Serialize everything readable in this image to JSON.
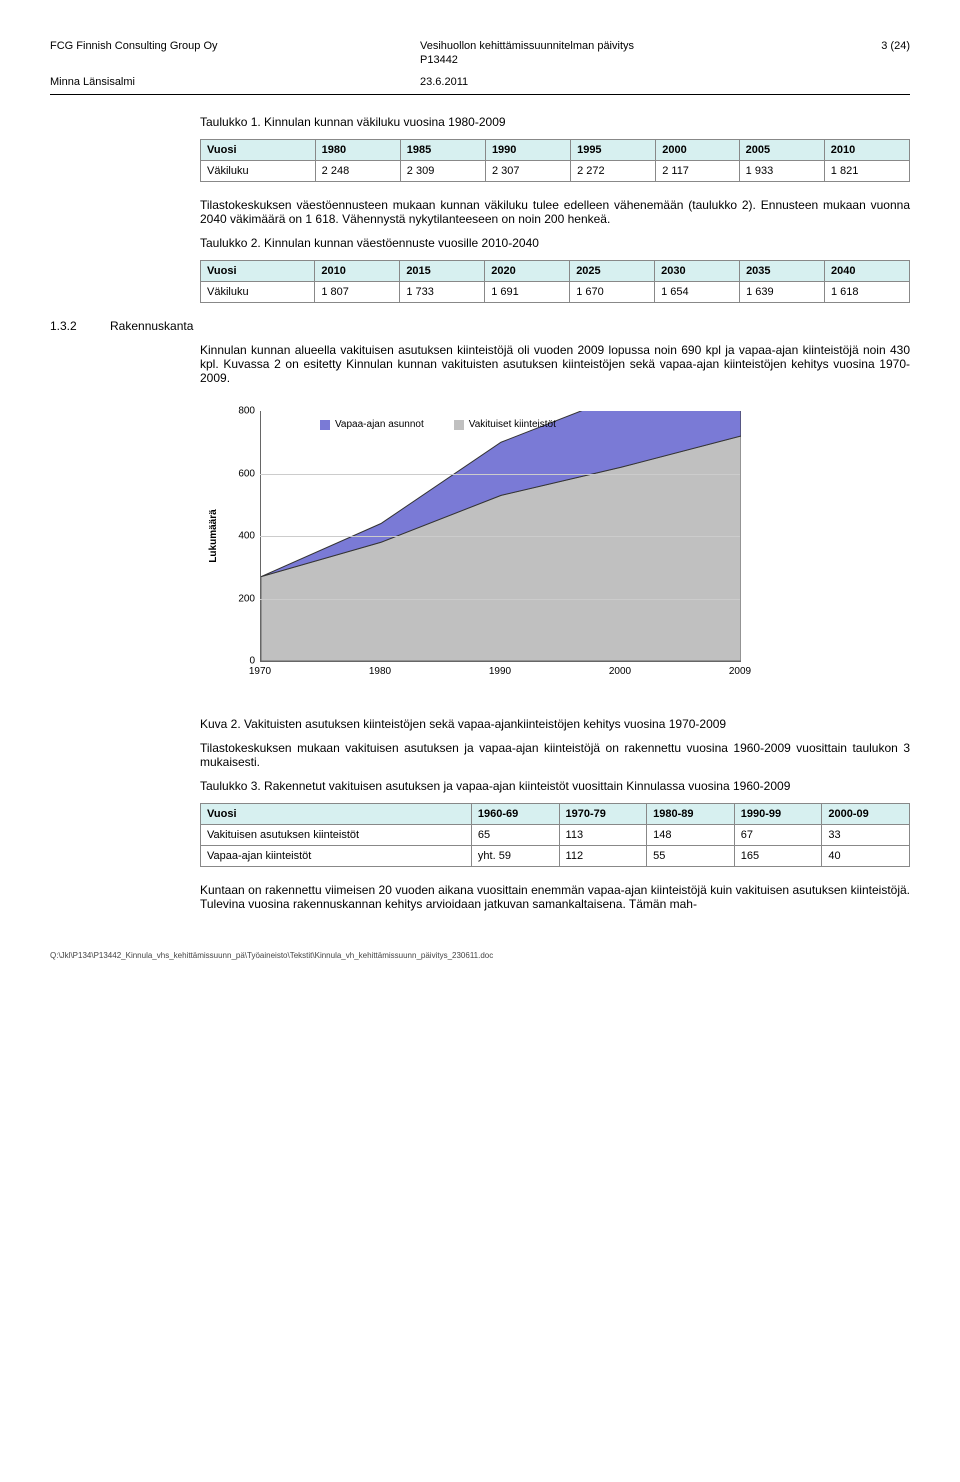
{
  "header": {
    "company": "FCG Finnish Consulting Group Oy",
    "doc_title": "Vesihuollon kehittämissuunnitelman päivitys",
    "doc_code": "P13442",
    "page": "3 (24)",
    "author": "Minna Länsisalmi",
    "date": "23.6.2011"
  },
  "para1_title": "Taulukko 1. Kinnulan kunnan väkiluku vuosina 1980-2009",
  "table1": {
    "header": [
      "Vuosi",
      "1980",
      "1985",
      "1990",
      "1995",
      "2000",
      "2005",
      "2010"
    ],
    "row_label": "Väkiluku",
    "row": [
      "2 248",
      "2 309",
      "2 307",
      "2 272",
      "2 117",
      "1 933",
      "1 821"
    ],
    "header_bg": "#d7f0f0"
  },
  "para2": "Tilastokeskuksen väestöennusteen mukaan kunnan väkiluku tulee edelleen vähenemään (taulukko 2). Ennusteen mukaan vuonna 2040 väkimäärä on 1 618. Vähennystä nykytilanteeseen on noin 200 henkeä.",
  "para3_title": "Taulukko 2. Kinnulan kunnan väestöennuste vuosille 2010-2040",
  "table2": {
    "header": [
      "Vuosi",
      "2010",
      "2015",
      "2020",
      "2025",
      "2030",
      "2035",
      "2040"
    ],
    "row_label": "Väkiluku",
    "row": [
      "1 807",
      "1 733",
      "1 691",
      "1 670",
      "1 654",
      "1 639",
      "1 618"
    ],
    "header_bg": "#d7f0f0"
  },
  "section": {
    "num": "1.3.2",
    "title": "Rakennuskanta"
  },
  "para4": "Kinnulan kunnan alueella vakituisen asutuksen kiinteistöjä oli vuoden 2009 lopussa noin 690 kpl ja vapaa-ajan kiinteistöjä noin 430 kpl. Kuvassa 2 on esitetty Kinnulan kunnan vakituisten asutuksen kiinteistöjen sekä vapaa-ajan kiinteistöjen kehitys vuosina 1970-2009.",
  "chart": {
    "type": "area-stacked",
    "ylabel": "Lukumäärä",
    "ylim": [
      0,
      800
    ],
    "ytick_step": 200,
    "xcats": [
      "1970",
      "1980",
      "1990",
      "2000",
      "2009"
    ],
    "series": [
      {
        "name": "Vakituiset kiinteistöt",
        "color": "#c0c0c0",
        "values": [
          270,
          380,
          530,
          620,
          720
        ]
      },
      {
        "name": "Vapaa-ajan asunnot",
        "color": "#7a7ad6",
        "values": [
          0,
          60,
          170,
          230,
          390
        ]
      }
    ],
    "background_color": "#ffffff",
    "grid_color": "#cccccc",
    "legend_bg": "#ffffff"
  },
  "kuva_caption": "Kuva 2. Vakituisten asutuksen kiinteistöjen sekä vapaa-ajankiinteistöjen kehitys vuosina 1970-2009",
  "para5": "Tilastokeskuksen mukaan vakituisen asutuksen ja vapaa-ajan kiinteistöjä on rakennettu vuosina 1960-2009 vuosittain taulukon 3 mukaisesti.",
  "para6_title": "Taulukko 3. Rakennetut vakituisen asutuksen ja vapaa-ajan kiinteistöt vuosittain Kinnulassa vuosina 1960-2009",
  "table3": {
    "header": [
      "Vuosi",
      "1960-69",
      "1970-79",
      "1980-89",
      "1990-99",
      "2000-09"
    ],
    "rows": [
      {
        "label": "Vakituisen asutuksen kiinteistöt",
        "cells": [
          "65",
          "113",
          "148",
          "67",
          "33"
        ]
      },
      {
        "label": "Vapaa-ajan kiinteistöt",
        "cells": [
          "yht. 59",
          "112",
          "55",
          "165",
          "40"
        ]
      }
    ],
    "header_bg": "#d7f0f0"
  },
  "para7": "Kuntaan on rakennettu viimeisen 20 vuoden aikana vuosittain enemmän vapaa-ajan kiinteistöjä kuin vakituisen asutuksen kiinteistöjä. Tulevina vuosina rakennuskannan kehitys arvioidaan jatkuvan samankaltaisena. Tämän mah-",
  "footer_path": "Q:\\Jkl\\P134\\P13442_Kinnula_vhs_kehittämissuunn_pä\\Työaineisto\\Tekstit\\Kinnula_vh_kehittämissuunn_päivitys_230611.doc"
}
